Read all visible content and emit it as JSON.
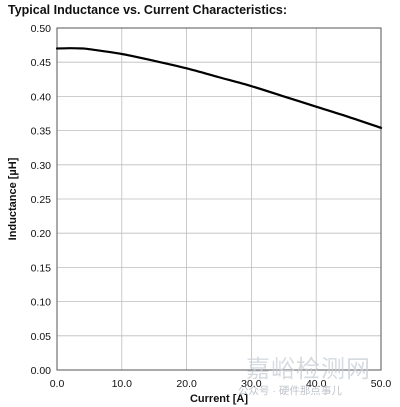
{
  "chart_data": {
    "type": "line",
    "title": "Typical Inductance vs. Current Characteristics:",
    "xlabel": "Current [A]",
    "ylabel": "Inductance [µH]",
    "xlim": [
      0,
      50
    ],
    "ylim": [
      0,
      0.5
    ],
    "xticks": [
      "0.0",
      "10.0",
      "20.0",
      "30.0",
      "40.0",
      "50.0"
    ],
    "yticks": [
      "0.00",
      "0.05",
      "0.10",
      "0.15",
      "0.20",
      "0.25",
      "0.30",
      "0.35",
      "0.40",
      "0.45",
      "0.50"
    ],
    "grid": true,
    "series": [
      {
        "x": [
          0,
          2,
          4,
          5,
          10,
          15,
          20,
          25,
          30,
          35,
          40,
          45,
          50
        ],
        "y": [
          0.47,
          0.4705,
          0.47,
          0.469,
          0.462,
          0.452,
          0.441,
          0.428,
          0.415,
          0.4,
          0.385,
          0.37,
          0.354
        ],
        "color": "#000000"
      }
    ]
  },
  "watermark": {
    "text": "嘉峪检测网",
    "sub": "公众号 · 硬件那点事儿"
  }
}
